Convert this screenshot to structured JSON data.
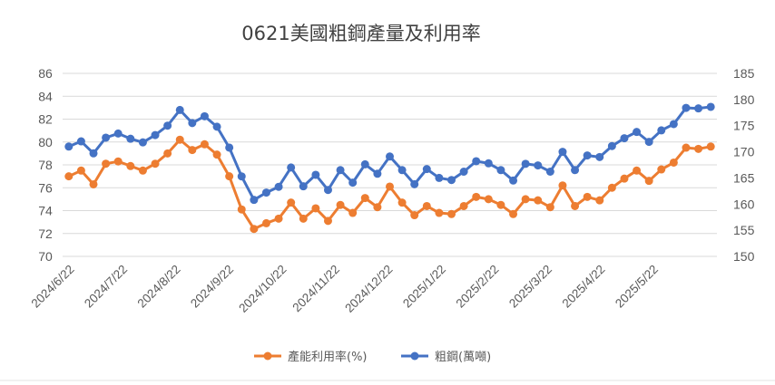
{
  "chart_data": {
    "type": "line",
    "title": "0621美國粗鋼產量及利用率",
    "left_axis": {
      "ylim": [
        70,
        86
      ],
      "ticks": [
        "70",
        "72",
        "74",
        "76",
        "78",
        "80",
        "82",
        "84",
        "86"
      ]
    },
    "right_axis": {
      "ylim": [
        150,
        185
      ],
      "ticks": [
        "150",
        "155",
        "160",
        "165",
        "170",
        "175",
        "180",
        "185"
      ]
    },
    "x_tick_labels": [
      "2024/6/22",
      "2024/7/22",
      "2024/8/22",
      "2024/9/22",
      "2024/10/22",
      "2024/11/22",
      "2024/12/22",
      "2025/1/22",
      "2025/2/22",
      "2025/3/22",
      "2025/4/22",
      "2025/5/22"
    ],
    "grid": true,
    "legend_position": "bottom",
    "series": [
      {
        "name": "產能利用率(%)",
        "axis": "left",
        "color": "#ED7D31",
        "values": [
          77.0,
          77.5,
          76.3,
          78.1,
          78.3,
          77.9,
          77.5,
          78.1,
          79.0,
          80.2,
          79.3,
          79.8,
          78.9,
          77.0,
          74.1,
          72.4,
          72.9,
          73.3,
          74.7,
          73.3,
          74.2,
          73.1,
          74.5,
          73.8,
          75.1,
          74.3,
          76.1,
          74.7,
          73.6,
          74.4,
          73.8,
          73.7,
          74.4,
          75.2,
          75.0,
          74.5,
          73.7,
          75.0,
          74.9,
          74.3,
          76.2,
          74.4,
          75.2,
          74.9,
          76.0,
          76.8,
          77.5,
          76.6,
          77.6,
          78.2,
          79.5,
          79.4,
          79.6
        ]
      },
      {
        "name": "粗鋼(萬噸)",
        "axis": "right",
        "color": "#4472C4",
        "values": [
          171.0,
          172.0,
          169.7,
          172.7,
          173.5,
          172.5,
          171.8,
          173.2,
          175.0,
          178.0,
          175.5,
          176.8,
          174.8,
          170.8,
          165.3,
          160.8,
          162.2,
          163.3,
          167.0,
          163.4,
          165.6,
          162.7,
          166.5,
          164.1,
          167.6,
          165.8,
          169.1,
          166.5,
          163.8,
          166.7,
          165.0,
          164.6,
          166.2,
          168.2,
          167.8,
          166.5,
          164.5,
          167.7,
          167.4,
          166.2,
          170.0,
          166.5,
          169.3,
          169.0,
          171.1,
          172.6,
          173.8,
          171.9,
          174.1,
          175.3,
          178.4,
          178.3,
          178.6
        ]
      }
    ]
  }
}
